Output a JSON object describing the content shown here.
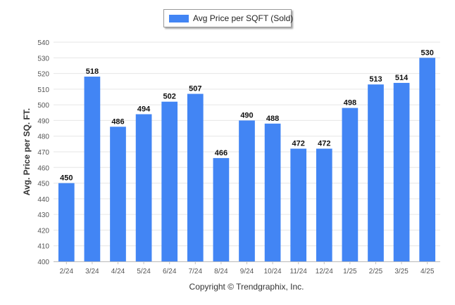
{
  "chart_data": {
    "type": "bar",
    "categories": [
      "2/24",
      "3/24",
      "4/24",
      "5/24",
      "6/24",
      "7/24",
      "8/24",
      "9/24",
      "10/24",
      "11/24",
      "12/24",
      "1/25",
      "2/25",
      "3/25",
      "4/25"
    ],
    "series": [
      {
        "name": "Avg Price per SQFT (Sold)",
        "values": [
          450,
          518,
          486,
          494,
          502,
          507,
          466,
          490,
          488,
          472,
          472,
          498,
          513,
          514,
          530
        ]
      }
    ],
    "ylabel": "Avg. Price per SQ. FT.",
    "xlabel": "",
    "ylim": [
      400,
      540
    ],
    "yticks": [
      400,
      410,
      420,
      430,
      440,
      450,
      460,
      470,
      480,
      490,
      500,
      510,
      520,
      530,
      540
    ],
    "grid": true,
    "legend_position": "top-center",
    "bar_color": "#4285f4"
  },
  "footer": {
    "copyright": "Copyright © Trendgraphix, Inc."
  }
}
